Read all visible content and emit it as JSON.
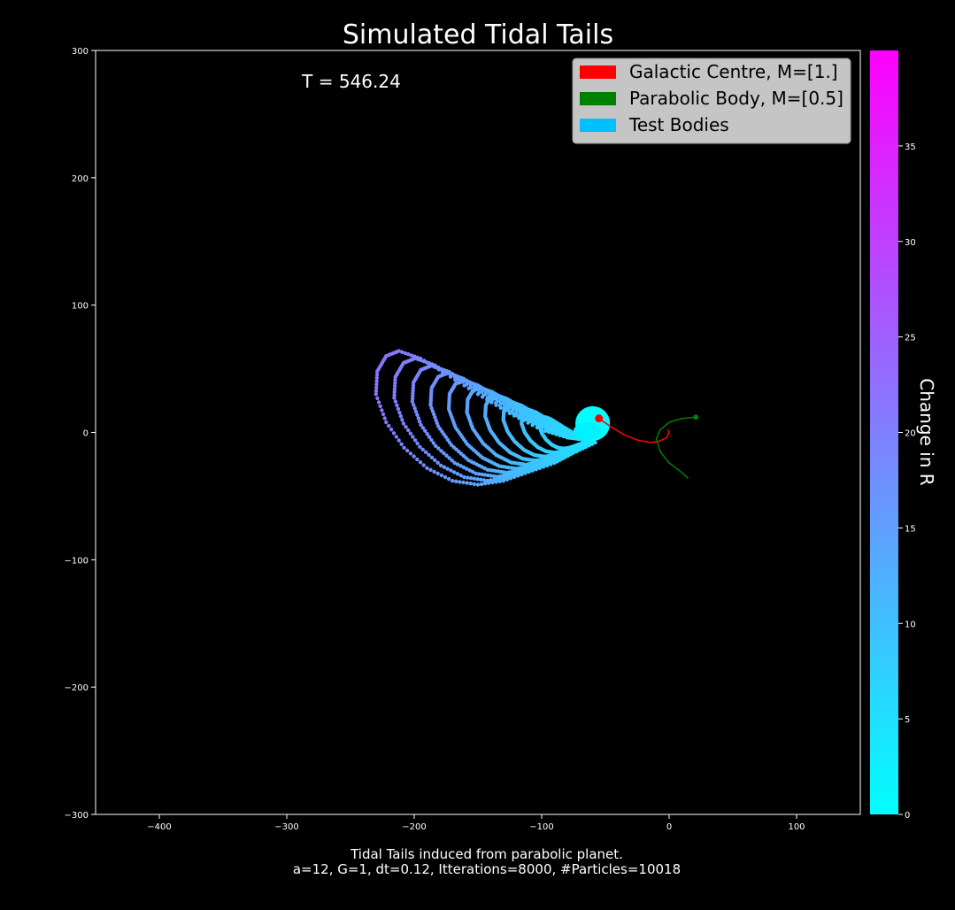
{
  "chart_data": {
    "type": "scatter",
    "title": "Simulated Tidal Tails",
    "time_label": "T = 546.24",
    "caption_line1": "Tidal Tails induced from parabolic planet.",
    "caption_line2": "a=12, G=1, dt=0.12, Itterations=8000, #Particles=10018",
    "xlim": [
      -450,
      150
    ],
    "ylim": [
      -300,
      300
    ],
    "x_ticks": [
      "−400",
      "−300",
      "−200",
      "−100",
      "0",
      "100"
    ],
    "x_tick_values": [
      -400,
      -300,
      -200,
      -100,
      0,
      100
    ],
    "y_ticks": [
      "−300",
      "−200",
      "−100",
      "0",
      "100",
      "200",
      "300"
    ],
    "y_tick_values": [
      -300,
      -200,
      -100,
      0,
      100,
      200,
      300
    ],
    "legend": {
      "position": "upper right",
      "entries": [
        {
          "label": "Galactic Centre, M=[1.]",
          "color": "#ff0000"
        },
        {
          "label": "Parabolic Body, M=[0.5]",
          "color": "#008000"
        },
        {
          "label": "Test Bodies",
          "color": "#00bfff"
        }
      ]
    },
    "colorbar": {
      "label": "Change in R",
      "range": [
        0,
        40
      ],
      "ticks": [
        "0",
        "5",
        "10",
        "15",
        "20",
        "25",
        "30",
        "35"
      ],
      "tick_values": [
        0,
        5,
        10,
        15,
        20,
        25,
        30,
        35
      ],
      "colormap": "cool",
      "color_min": "#00ffff",
      "color_max": "#ff00ff"
    },
    "galactic_centre": {
      "x": -55,
      "y": 11,
      "color": "#ff0000"
    },
    "parabolic_body": {
      "x": 21,
      "y": 12,
      "color": "#008000"
    },
    "galactic_centre_path": [
      [
        -55,
        11
      ],
      [
        -45,
        4
      ],
      [
        -35,
        -2
      ],
      [
        -25,
        -6
      ],
      [
        -15,
        -8
      ],
      [
        -8,
        -7
      ],
      [
        -2,
        -4
      ],
      [
        0,
        0
      ],
      [
        -1,
        2
      ]
    ],
    "parabolic_body_path": [
      [
        21,
        12
      ],
      [
        10,
        11
      ],
      [
        0,
        8
      ],
      [
        -7,
        2
      ],
      [
        -10,
        -5
      ],
      [
        -7,
        -15
      ],
      [
        0,
        -24
      ],
      [
        8,
        -30
      ],
      [
        15,
        -36
      ]
    ],
    "tail": {
      "outer_points": [
        [
          -58,
          -8
        ],
        [
          -75,
          -16
        ],
        [
          -90,
          -24
        ],
        [
          -110,
          -31
        ],
        [
          -130,
          -38
        ],
        [
          -150,
          -41
        ],
        [
          -170,
          -38
        ],
        [
          -190,
          -28
        ],
        [
          -208,
          -12
        ],
        [
          -222,
          8
        ],
        [
          -230,
          30
        ],
        [
          -229,
          48
        ],
        [
          -222,
          60
        ],
        [
          -212,
          64
        ],
        [
          -195,
          58
        ],
        [
          -175,
          46
        ],
        [
          -150,
          30
        ],
        [
          -125,
          15
        ],
        [
          -100,
          2
        ],
        [
          -80,
          -4
        ],
        [
          -65,
          -6
        ]
      ],
      "core_center": [
        -60,
        7
      ],
      "core_radius": 14,
      "change_in_r_tip": 22,
      "change_in_r_root": 4
    }
  }
}
